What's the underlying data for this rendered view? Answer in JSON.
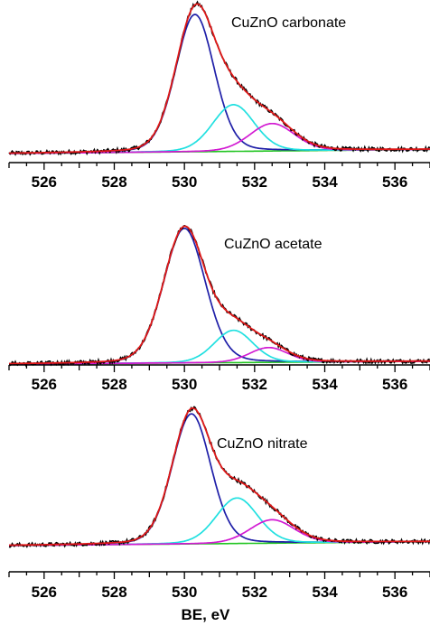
{
  "chart_data": [
    {
      "type": "line",
      "title": "CuZnO carbonate",
      "xlabel": "",
      "xlim": [
        525,
        537
      ],
      "x_ticks": [
        526,
        528,
        530,
        532,
        534,
        536
      ],
      "grid": false,
      "peaks": [
        {
          "color": "#1f1fa8",
          "center": 530.3,
          "height": 1.0,
          "fwhm": 1.3
        },
        {
          "color": "#21e0e0",
          "center": 531.4,
          "height": 0.34,
          "fwhm": 1.4
        },
        {
          "color": "#d21ad2",
          "center": 532.5,
          "height": 0.2,
          "fwhm": 1.5
        }
      ],
      "baseline": {
        "color": "#22c522",
        "start": 0.0,
        "end": 0.03
      },
      "envelope_color": "#e01818",
      "data_color": "#000000"
    },
    {
      "type": "line",
      "title": "CuZnO acetate",
      "xlabel": "",
      "xlim": [
        525,
        537
      ],
      "x_ticks": [
        526,
        528,
        530,
        532,
        534,
        536
      ],
      "grid": false,
      "peaks": [
        {
          "color": "#1f1fa8",
          "center": 530.0,
          "height": 1.0,
          "fwhm": 1.4
        },
        {
          "color": "#21e0e0",
          "center": 531.4,
          "height": 0.24,
          "fwhm": 1.3
        },
        {
          "color": "#d21ad2",
          "center": 532.4,
          "height": 0.11,
          "fwhm": 1.3
        }
      ],
      "baseline": {
        "color": "#22c522",
        "start": 0.0,
        "end": 0.02
      },
      "envelope_color": "#e01818",
      "data_color": "#000000"
    },
    {
      "type": "line",
      "title": "CuZnO nitrate",
      "xlabel": "BE, eV",
      "xlim": [
        525,
        537
      ],
      "x_ticks": [
        526,
        528,
        530,
        532,
        534,
        536
      ],
      "grid": false,
      "peaks": [
        {
          "color": "#1f1fa8",
          "center": 530.2,
          "height": 1.0,
          "fwhm": 1.3
        },
        {
          "color": "#21e0e0",
          "center": 531.5,
          "height": 0.35,
          "fwhm": 1.4
        },
        {
          "color": "#d21ad2",
          "center": 532.5,
          "height": 0.18,
          "fwhm": 1.5
        }
      ],
      "baseline": {
        "color": "#22c522",
        "start": 0.0,
        "end": 0.03
      },
      "envelope_color": "#e01818",
      "data_color": "#000000"
    }
  ]
}
